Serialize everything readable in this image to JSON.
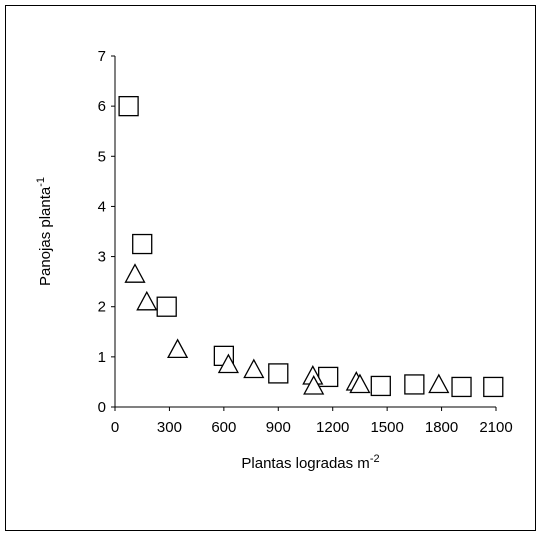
{
  "chart_data": {
    "type": "scatter",
    "title": "",
    "xlabel": "Plantas logradas m",
    "xlabel_sup": "-2",
    "ylabel": "Panojas planta",
    "ylabel_sup": "-1",
    "xlim": [
      0,
      2100
    ],
    "ylim": [
      0,
      7
    ],
    "xticks": [
      0,
      300,
      600,
      900,
      1200,
      1500,
      1800,
      2100
    ],
    "yticks": [
      0,
      1,
      2,
      3,
      4,
      5,
      6,
      7
    ],
    "grid": false,
    "series": [
      {
        "marker": "square",
        "points": [
          {
            "x": 75,
            "y": 6.0
          },
          {
            "x": 150,
            "y": 3.25
          },
          {
            "x": 285,
            "y": 2.0
          },
          {
            "x": 600,
            "y": 1.02
          },
          {
            "x": 900,
            "y": 0.67
          },
          {
            "x": 1175,
            "y": 0.6
          },
          {
            "x": 1465,
            "y": 0.42
          },
          {
            "x": 1650,
            "y": 0.45
          },
          {
            "x": 1910,
            "y": 0.4
          },
          {
            "x": 2085,
            "y": 0.4
          }
        ]
      },
      {
        "marker": "triangle",
        "points": [
          {
            "x": 110,
            "y": 2.65
          },
          {
            "x": 175,
            "y": 2.1
          },
          {
            "x": 345,
            "y": 1.15
          },
          {
            "x": 625,
            "y": 0.85
          },
          {
            "x": 765,
            "y": 0.75
          },
          {
            "x": 1090,
            "y": 0.62
          },
          {
            "x": 1095,
            "y": 0.42
          },
          {
            "x": 1330,
            "y": 0.5
          },
          {
            "x": 1350,
            "y": 0.45
          },
          {
            "x": 1785,
            "y": 0.45
          }
        ]
      }
    ]
  }
}
